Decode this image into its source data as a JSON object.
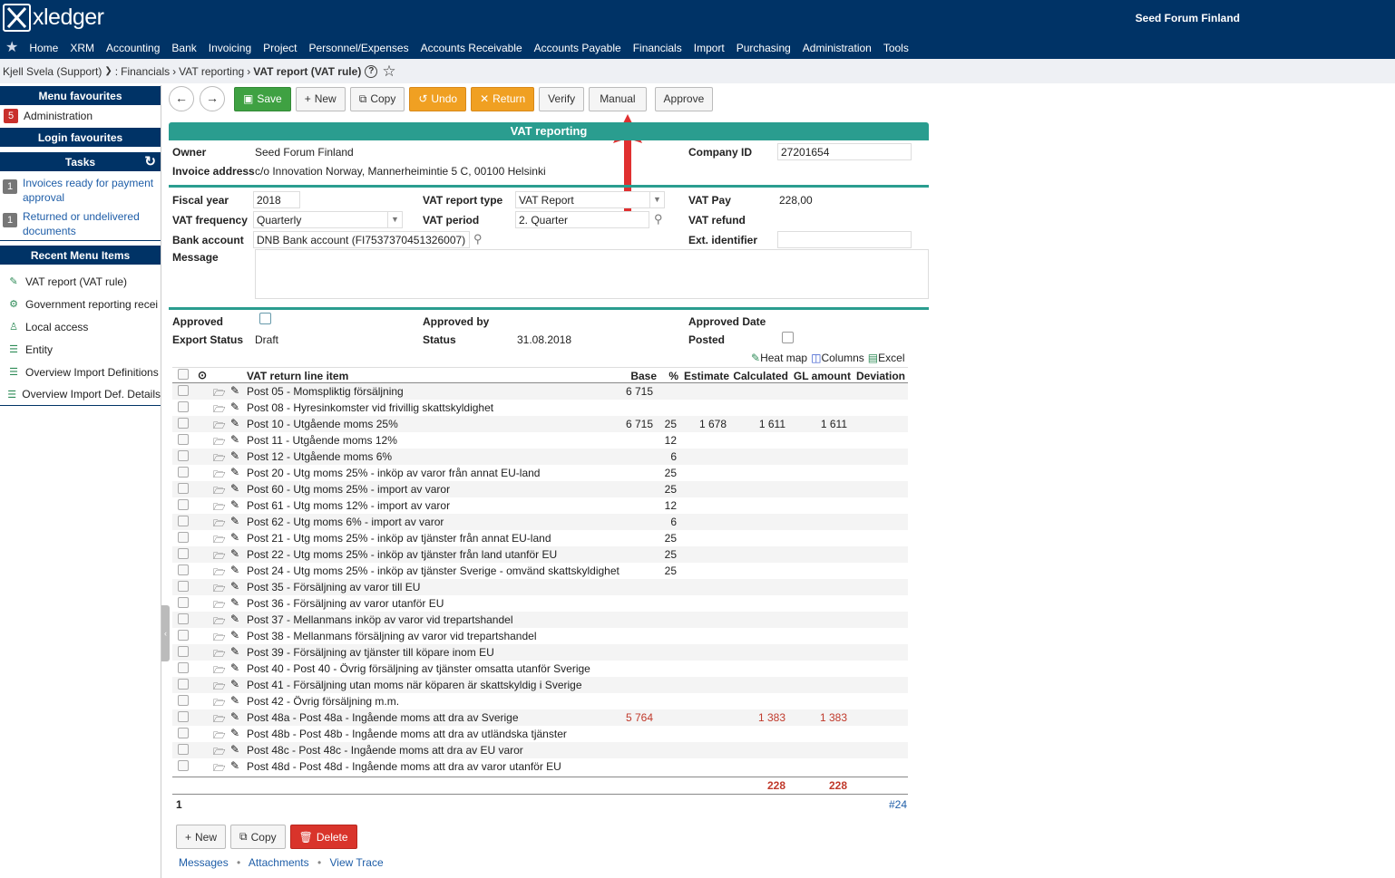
{
  "app": {
    "logo_text": "xledger",
    "company": "Seed Forum Finland"
  },
  "nav": {
    "items": [
      "Home",
      "XRM",
      "Accounting",
      "Bank",
      "Invoicing",
      "Project",
      "Personnel/Expenses",
      "Accounts Receivable",
      "Accounts Payable",
      "Financials",
      "Import",
      "Purchasing",
      "Administration",
      "Tools"
    ]
  },
  "breadcrumb": {
    "user": "Kjell Svela (Support)",
    "path1": "Financials",
    "path2": "VAT reporting",
    "current": "VAT report (VAT rule)",
    "help": "?"
  },
  "sidebar": {
    "menu_favourites": "Menu favourites",
    "fav_badge": "5",
    "fav_item": "Administration",
    "login_favourites": "Login favourites",
    "tasks": "Tasks",
    "task1_badge": "1",
    "task1": "Invoices ready for payment approval",
    "task2_badge": "1",
    "task2": "Returned or undelivered documents",
    "recent_title": "Recent Menu Items",
    "recent": [
      "VAT report (VAT rule)",
      "Government reporting recei",
      "Local access",
      "Entity",
      "Overview Import Definitions",
      "Overview Import Def. Details"
    ]
  },
  "toolbar": {
    "back": "←",
    "forward": "→",
    "save": "Save",
    "new": "New",
    "copy": "Copy",
    "undo": "Undo",
    "return": "Return",
    "verify": "Verify",
    "manual": "Manual",
    "approve": "Approve"
  },
  "form": {
    "title": "VAT reporting",
    "owner_label": "Owner",
    "owner": "Seed Forum Finland",
    "company_id_label": "Company ID",
    "company_id": "27201654",
    "invoice_address_label": "Invoice address",
    "invoice_address": "c/o Innovation Norway, Mannerheimintie 5 C, 00100 Helsinki",
    "fiscal_year_label": "Fiscal year",
    "fiscal_year": "2018",
    "vat_report_type_label": "VAT report type",
    "vat_report_type": "VAT Report",
    "vat_pay_label": "VAT Pay",
    "vat_pay": "228,00",
    "vat_frequency_label": "VAT frequency",
    "vat_frequency": "Quarterly",
    "vat_period_label": "VAT period",
    "vat_period": "2. Quarter",
    "vat_refund_label": "VAT refund",
    "bank_account_label": "Bank account",
    "bank_account": "DNB Bank account (FI7537370451326007)",
    "ext_identifier_label": "Ext. identifier",
    "message_label": "Message",
    "approved_label": "Approved",
    "approved_by_label": "Approved by",
    "approved_date_label": "Approved Date",
    "export_status_label": "Export Status",
    "export_status": "Draft",
    "status_label": "Status",
    "status": "31.08.2018",
    "posted_label": "Posted"
  },
  "grid_tools": {
    "heatmap": "Heat map",
    "columns": "Columns",
    "excel": "Excel"
  },
  "grid": {
    "headers": {
      "item": "VAT return line item",
      "base": "Base",
      "pct": "%",
      "estimate": "Estimate",
      "calculated": "Calculated",
      "gl": "GL amount",
      "deviation": "Deviation"
    },
    "rows": [
      {
        "item": "Post 05 - Momspliktig försäljning",
        "base": "6 715",
        "pct": "",
        "estimate": "",
        "calculated": "",
        "gl": "",
        "red": false
      },
      {
        "item": "Post 08 - Hyresinkomster vid frivillig skattskyldighet",
        "base": "",
        "pct": "",
        "estimate": "",
        "calculated": "",
        "gl": "",
        "red": false
      },
      {
        "item": "Post 10 - Utgående moms 25%",
        "base": "6 715",
        "pct": "25",
        "estimate": "1 678",
        "calculated": "1 611",
        "gl": "1 611",
        "red": false
      },
      {
        "item": "Post 11 - Utgående moms 12%",
        "base": "",
        "pct": "12",
        "estimate": "",
        "calculated": "",
        "gl": "",
        "red": false
      },
      {
        "item": "Post 12 - Utgående moms 6%",
        "base": "",
        "pct": "6",
        "estimate": "",
        "calculated": "",
        "gl": "",
        "red": false
      },
      {
        "item": "Post 20 - Utg moms 25% - inköp av varor från annat EU-land",
        "base": "",
        "pct": "25",
        "estimate": "",
        "calculated": "",
        "gl": "",
        "red": false
      },
      {
        "item": "Post 60 - Utg moms 25% - import av varor",
        "base": "",
        "pct": "25",
        "estimate": "",
        "calculated": "",
        "gl": "",
        "red": false
      },
      {
        "item": "Post 61 - Utg moms 12% - import av varor",
        "base": "",
        "pct": "12",
        "estimate": "",
        "calculated": "",
        "gl": "",
        "red": false
      },
      {
        "item": "Post 62 - Utg moms 6% - import av varor",
        "base": "",
        "pct": "6",
        "estimate": "",
        "calculated": "",
        "gl": "",
        "red": false
      },
      {
        "item": "Post 21 - Utg moms 25% - inköp av tjänster från annat EU-land",
        "base": "",
        "pct": "25",
        "estimate": "",
        "calculated": "",
        "gl": "",
        "red": false
      },
      {
        "item": "Post 22 - Utg moms 25% - inköp av tjänster från land utanför EU",
        "base": "",
        "pct": "25",
        "estimate": "",
        "calculated": "",
        "gl": "",
        "red": false
      },
      {
        "item": "Post 24 - Utg moms 25% - inköp av tjänster Sverige - omvänd skattskyldighet",
        "base": "",
        "pct": "25",
        "estimate": "",
        "calculated": "",
        "gl": "",
        "red": false
      },
      {
        "item": "Post 35 - Försäljning av varor till EU",
        "base": "",
        "pct": "",
        "estimate": "",
        "calculated": "",
        "gl": "",
        "red": false
      },
      {
        "item": "Post 36 - Försäljning av varor utanför EU",
        "base": "",
        "pct": "",
        "estimate": "",
        "calculated": "",
        "gl": "",
        "red": false
      },
      {
        "item": "Post 37 - Mellanmans inköp av varor vid trepartshandel",
        "base": "",
        "pct": "",
        "estimate": "",
        "calculated": "",
        "gl": "",
        "red": false
      },
      {
        "item": "Post 38 - Mellanmans försäljning av varor vid trepartshandel",
        "base": "",
        "pct": "",
        "estimate": "",
        "calculated": "",
        "gl": "",
        "red": false
      },
      {
        "item": "Post 39 - Försäljning av tjänster till köpare inom EU",
        "base": "",
        "pct": "",
        "estimate": "",
        "calculated": "",
        "gl": "",
        "red": false
      },
      {
        "item": "Post 40 - Post 40 - Övrig försäljning av tjänster omsatta utanför Sverige",
        "base": "",
        "pct": "",
        "estimate": "",
        "calculated": "",
        "gl": "",
        "red": false
      },
      {
        "item": "Post 41 - Försäljning utan moms när köparen är skattskyldig i Sverige",
        "base": "",
        "pct": "",
        "estimate": "",
        "calculated": "",
        "gl": "",
        "red": false
      },
      {
        "item": "Post 42 - Övrig försäljning m.m.",
        "base": "",
        "pct": "",
        "estimate": "",
        "calculated": "",
        "gl": "",
        "red": false
      },
      {
        "item": "Post 48a - Post 48a - Ingående moms att dra av Sverige",
        "base": "5 764",
        "pct": "",
        "estimate": "",
        "calculated": "1 383",
        "gl": "1 383",
        "red": true
      },
      {
        "item": "Post 48b - Post 48b - Ingående moms att dra av utländska tjänster",
        "base": "",
        "pct": "",
        "estimate": "",
        "calculated": "",
        "gl": "",
        "red": false
      },
      {
        "item": "Post 48c - Post 48c - Ingående moms att dra av EU varor",
        "base": "",
        "pct": "",
        "estimate": "",
        "calculated": "",
        "gl": "",
        "red": false
      },
      {
        "item": "Post 48d - Post 48d - Ingående moms att dra av varor utanför EU",
        "base": "",
        "pct": "",
        "estimate": "",
        "calculated": "",
        "gl": "",
        "red": false
      }
    ],
    "total_calculated": "228",
    "total_gl": "228",
    "page": "1",
    "count": "#24"
  },
  "bottom": {
    "new": "New",
    "copy": "Copy",
    "delete": "Delete",
    "messages": "Messages",
    "attachments": "Attachments",
    "view_trace": "View Trace",
    "dot": "•"
  },
  "colors": {
    "navy": "#003366",
    "teal": "#2a9d8f",
    "save": "#3fa142",
    "undo": "#f0a022",
    "delete": "#d9342b",
    "arrow": "#e03030"
  }
}
